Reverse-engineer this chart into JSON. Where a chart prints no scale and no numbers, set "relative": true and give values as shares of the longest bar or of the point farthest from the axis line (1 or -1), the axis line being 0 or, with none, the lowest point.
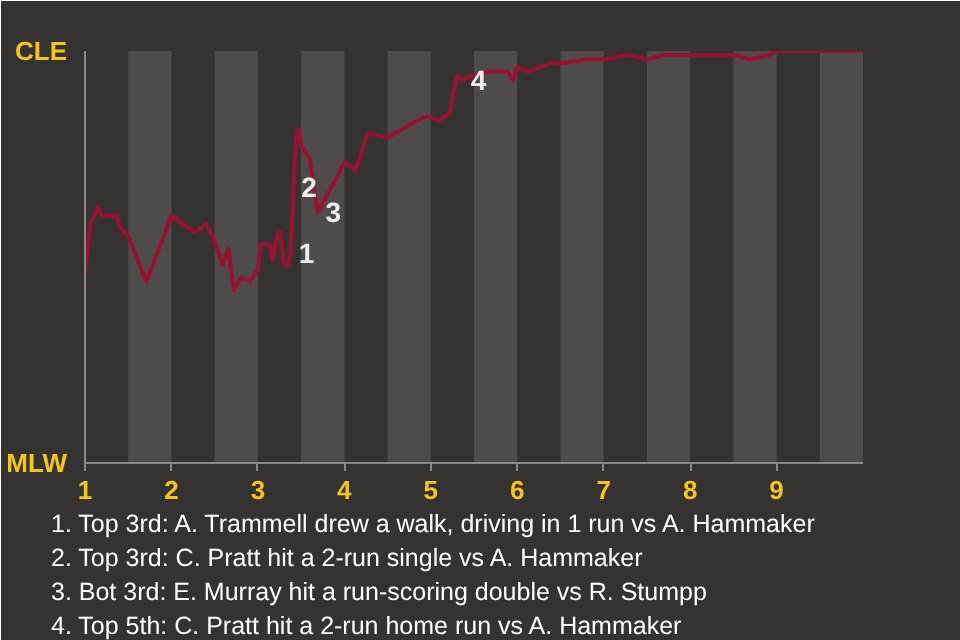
{
  "chart_data": {
    "type": "line",
    "relative": true,
    "x": [
      1.0,
      1.06,
      1.15,
      1.2,
      1.37,
      1.41,
      1.5,
      1.71,
      2.0,
      2.27,
      2.4,
      2.5,
      2.59,
      2.66,
      2.72,
      2.81,
      2.91,
      3.0,
      3.03,
      3.14,
      3.17,
      3.2,
      3.24,
      3.26,
      3.3,
      3.35,
      3.38,
      3.44,
      3.47,
      3.5,
      3.6,
      3.69,
      3.88,
      4.0,
      4.13,
      4.27,
      4.5,
      4.92,
      5.0,
      5.09,
      5.22,
      5.3,
      5.37,
      5.5,
      5.65,
      5.89,
      5.95,
      6.0,
      6.13,
      6.39,
      6.5,
      6.81,
      7.0,
      7.28,
      7.5,
      7.69,
      8.0,
      8.26,
      8.5,
      8.68,
      8.91,
      9.0,
      9.23,
      9.5,
      10.0
    ],
    "series": [
      {
        "color": "#9b1030",
        "values": [
          0.46,
          0.58,
          0.62,
          0.6,
          0.6,
          0.57,
          0.55,
          0.44,
          0.6,
          0.56,
          0.58,
          0.54,
          0.48,
          0.52,
          0.42,
          0.45,
          0.44,
          0.47,
          0.53,
          0.53,
          0.49,
          0.53,
          0.56,
          0.56,
          0.48,
          0.48,
          0.51,
          0.79,
          0.81,
          0.77,
          0.74,
          0.61,
          0.68,
          0.73,
          0.71,
          0.8,
          0.79,
          0.84,
          0.84,
          0.83,
          0.85,
          0.94,
          0.93,
          0.94,
          0.95,
          0.95,
          0.93,
          0.96,
          0.95,
          0.97,
          0.97,
          0.98,
          0.98,
          0.99,
          0.98,
          0.99,
          0.99,
          0.99,
          0.99,
          0.98,
          0.99,
          1.0,
          1.0,
          1.0,
          1.0
        ]
      }
    ],
    "xlim": [
      1,
      10
    ],
    "xticks": [
      1,
      2,
      3,
      4,
      5,
      6,
      7,
      8,
      9
    ],
    "marker": "none",
    "line_style": "solid",
    "bands": [
      {
        "axis": "x",
        "from": 1.5,
        "to": 2,
        "color": "#4e4c4a"
      },
      {
        "axis": "x",
        "from": 2.5,
        "to": 3,
        "color": "#4e4c4a"
      },
      {
        "axis": "x",
        "from": 3.5,
        "to": 4,
        "color": "#4e4c4a"
      },
      {
        "axis": "x",
        "from": 4.5,
        "to": 5,
        "color": "#4e4c4a"
      },
      {
        "axis": "x",
        "from": 5.5,
        "to": 6,
        "color": "#4e4c4a"
      },
      {
        "axis": "x",
        "from": 6.5,
        "to": 7,
        "color": "#4e4c4a"
      },
      {
        "axis": "x",
        "from": 7.5,
        "to": 8,
        "color": "#4e4c4a"
      },
      {
        "axis": "x",
        "from": 8.5,
        "to": 9,
        "color": "#4e4c4a"
      },
      {
        "axis": "x",
        "from": 9.5,
        "to": 10,
        "color": "#4e4c4a"
      }
    ],
    "annotations": [
      "CLE",
      "MLW",
      {
        "text": "1",
        "x": 3.38,
        "y": 0.51
      },
      {
        "text": "2",
        "x": 3.41,
        "y": 0.67
      },
      {
        "text": "3",
        "x": 3.69,
        "y": 0.61
      },
      {
        "text": "4",
        "x": 5.37,
        "y": 0.93
      },
      "1. Top 3rd: A. Trammell drew a walk, driving in 1 run vs A. Hammaker",
      "2. Top 3rd: C. Pratt hit a 2-run single vs A. Hammaker",
      "3. Bot 3rd: E. Murray hit a run-scoring double vs R. Stumpp",
      "4. Top 5th: C. Pratt hit a 2-run home run vs A. Hammaker"
    ]
  }
}
